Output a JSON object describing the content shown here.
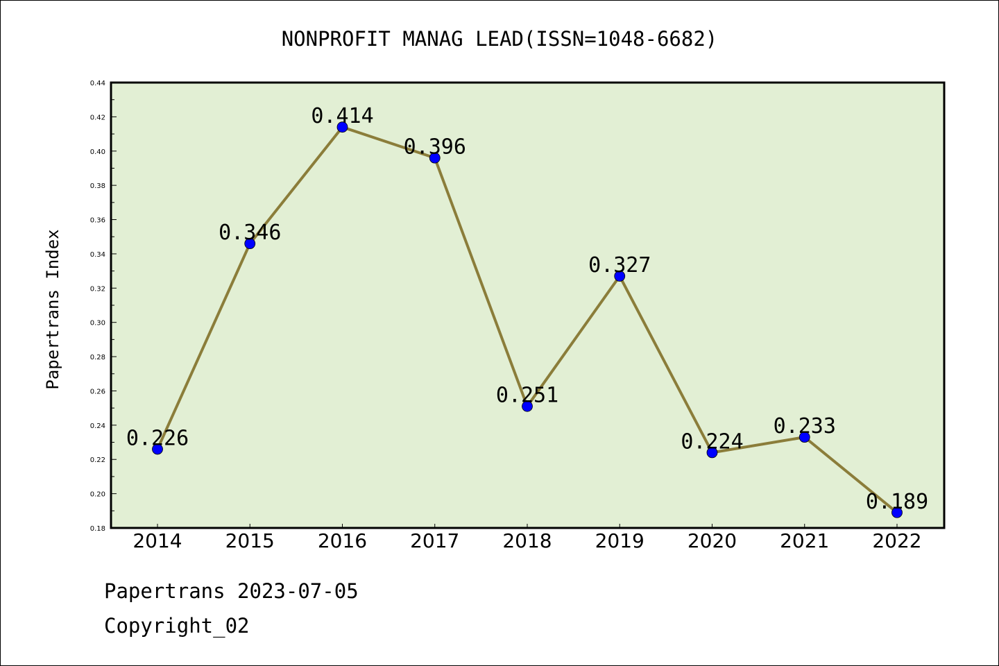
{
  "chart_data": {
    "type": "line",
    "title": "NONPROFIT MANAG LEAD(ISSN=1048-6682)",
    "ylabel": "Papertrans Index",
    "xlabel": "",
    "categories": [
      "2014",
      "2015",
      "2016",
      "2017",
      "2018",
      "2019",
      "2020",
      "2021",
      "2022"
    ],
    "values": [
      0.226,
      0.346,
      0.414,
      0.396,
      0.251,
      0.327,
      0.224,
      0.233,
      0.189
    ],
    "data_labels": [
      "0.226",
      "0.346",
      "0.414",
      "0.396",
      "0.251",
      "0.327",
      "0.224",
      "0.233",
      "0.189"
    ],
    "ylim": [
      0.18,
      0.44
    ],
    "yticks": [
      "0.18",
      "0.20",
      "0.22",
      "0.24",
      "0.26",
      "0.28",
      "0.30",
      "0.32",
      "0.34",
      "0.36",
      "0.38",
      "0.40",
      "0.42",
      "0.44"
    ],
    "grid": false,
    "colors": {
      "plot_background": "#e2efd4",
      "line": "#8b7d3a",
      "marker": "#0000ff"
    }
  },
  "footer": {
    "line1": "Papertrans 2023-07-05",
    "line2": "Copyright_02"
  }
}
